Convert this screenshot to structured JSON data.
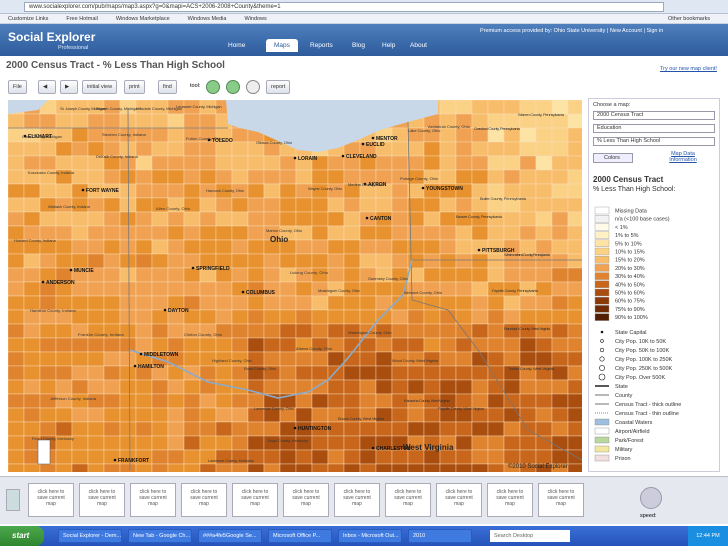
{
  "browser": {
    "url": "www.socialexplorer.com/pub/maps/map3.aspx?g=0&mapi=ACS+2006-2008+County&theme=1",
    "bookmarks": [
      "Customize Links",
      "Free Hotmail",
      "Windows Marketplace",
      "Windows Media",
      "Windows"
    ],
    "other_bookmarks": "Other bookmarks"
  },
  "header": {
    "logo": "Social Explorer",
    "logo_sub": "Professional",
    "access": "Premium access provided by: Ohio State University",
    "links": [
      "New Account",
      "Sign in"
    ],
    "nav": [
      "Home",
      "Maps",
      "Reports",
      "Blog",
      "Help",
      "About"
    ]
  },
  "page": {
    "title": "2000 Census Tract - % Less Than High School",
    "new_client_link": "Try our new map client!"
  },
  "toolbar": {
    "file": "File",
    "initial_view": "initial view",
    "print": "print",
    "find": "find",
    "tool": "tool:",
    "report": "report"
  },
  "map": {
    "state_labels": [
      "Ohio",
      "West Virginia"
    ],
    "cities": [
      "ELKHART",
      "FORT WAYNE",
      "MUNCIE",
      "ANDERSON",
      "SPRINGFIELD",
      "DAYTON",
      "MIDDLETOWN",
      "HAMILTON",
      "COLUMBUS",
      "TOLEDO",
      "LORAIN",
      "CLEVELAND",
      "EUCLID",
      "MENTOR",
      "AKRON",
      "CANTON",
      "YOUNGSTOWN",
      "PITTSBURGH",
      "HUNTINGTON",
      "CHARLESTON",
      "FRANKFORT"
    ],
    "counties": [
      "Cass County, Michigan",
      "St. Joseph County, Michigan",
      "Branch County, Michigan",
      "Hillsdale County, Michigan",
      "Lenawee County, Michigan",
      "Fulton County, Ohio",
      "Ottawa County, Ohio",
      "Lake County, Ohio",
      "Ashtabula County, Ohio",
      "Crawford County, Pennsylvania",
      "Warren County, Pennsylvania",
      "Steuben County, Indiana",
      "DeKalb County, Indiana",
      "Kosciusko County, Indiana",
      "Wabash County, Indiana",
      "Howard County, Indiana",
      "Allen County, Ohio",
      "Hancock County, Ohio",
      "Marion County, Ohio",
      "Wayne County, Ohio",
      "Medina County, Ohio",
      "Portage County, Ohio",
      "Butler County, Pennsylvania",
      "Beaver County, Pennsylvania",
      "Westmoreland County, Pennsylvania",
      "Licking County, Ohio",
      "Muskingum County, Ohio",
      "Guernsey County, Ohio",
      "Belmont County, Ohio",
      "Fayette County, Pennsylvania",
      "Washington County, Ohio",
      "Athens County, Ohio",
      "Ross County, Ohio",
      "Clinton County, Ohio",
      "Highland County, Ohio",
      "Wood County, West Virginia",
      "Tucker County, West Virginia",
      "Kanawha County, West Virginia",
      "Boone County, West Virginia",
      "Fayette County, West Virginia",
      "Randolph County, West Virginia",
      "Lawrence County, Ohio",
      "Boyd County, Kentucky",
      "Franklin County, Indiana",
      "Hamilton County, Indiana",
      "Jefferson County, Indiana",
      "Lawrence County, Kentucky",
      "Floyd County, Kentucky"
    ],
    "copyright": "©2010 Social Explorer"
  },
  "panel": {
    "choose": "Choose a map:",
    "selects": [
      "2000 Census Tract",
      "Education",
      "% Less Than High School"
    ],
    "colors": "Colors",
    "info": [
      "Map Data",
      "Information"
    ],
    "legend_title": "2000 Census Tract",
    "legend_subtitle": "% Less Than High School:",
    "legend": [
      {
        "label": "Missing Data",
        "color": "#ffffff"
      },
      {
        "label": "n/a (<100 base cases)",
        "color": "#f2f2f2"
      },
      {
        "label": "< 1%",
        "color": "#fffbe8"
      },
      {
        "label": "1% to 5%",
        "color": "#fff1c4"
      },
      {
        "label": "5% to 10%",
        "color": "#fde3a4"
      },
      {
        "label": "10% to 15%",
        "color": "#fbd186"
      },
      {
        "label": "15% to 20%",
        "color": "#f8bd6a"
      },
      {
        "label": "20% to 30%",
        "color": "#f0a152"
      },
      {
        "label": "30% to 40%",
        "color": "#e0832f"
      },
      {
        "label": "40% to 50%",
        "color": "#c8671b"
      },
      {
        "label": "50% to 60%",
        "color": "#aa4e10"
      },
      {
        "label": "60% to 75%",
        "color": "#8b3b08"
      },
      {
        "label": "75% to 90%",
        "color": "#6e2b05"
      },
      {
        "label": "90% to 100%",
        "color": "#521e03"
      }
    ],
    "symbols": [
      "State Capital",
      "City Pop. 10K to 50K",
      "City Pop. 50K to 100K",
      "City Pop. 100K to 250K",
      "City Pop. 250K to 500K",
      "City Pop. Over 500K",
      "State",
      "County",
      "Census Tract - thick outline",
      "Census Tract - thin outline",
      "Coastal Waters",
      "Airport/Airfield",
      "Park/Forest",
      "Military",
      "Prison"
    ]
  },
  "thumbnails": [
    "click here to save current map",
    "click here to save current map",
    "click here to save current map",
    "click here to save current map",
    "click here to save current map",
    "click here to save current map",
    "click here to save current map",
    "click here to save current map",
    "click here to save current map",
    "click here to save current map",
    "click here to save current map"
  ],
  "speed": "speed:",
  "taskbar": {
    "start": "start",
    "items": [
      "Social Explorer - Dem...",
      "New Tab - Google Ch...",
      "###a4fe5Google Se...",
      "Microsoft Office P...",
      "Inbox - Microsoft Out...",
      "2010"
    ],
    "search": "Search Desktop",
    "clock": "12:44 PM"
  }
}
